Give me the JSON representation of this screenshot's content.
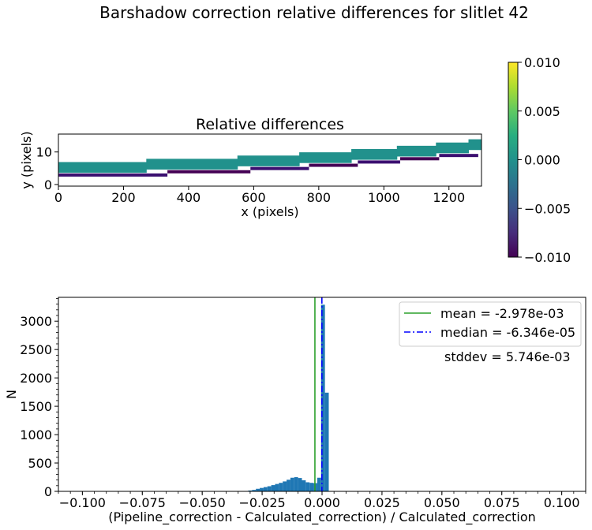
{
  "figure": {
    "title": "Barshadow correction relative differences for slitlet 42"
  },
  "chart_data": [
    {
      "type": "heatmap",
      "title": "Relative differences",
      "xlabel": "x (pixels)",
      "ylabel": "y (pixels)",
      "xlim": [
        0,
        1300
      ],
      "ylim": [
        -0.5,
        15.5
      ],
      "xticks": [
        0,
        200,
        400,
        600,
        800,
        1000,
        1200
      ],
      "yticks": [
        0,
        10
      ],
      "colormap": "viridis",
      "colorbar": {
        "vmin": -0.01,
        "vmax": 0.01,
        "ticks": [
          0.01,
          0.005,
          0.0,
          -0.005,
          -0.01
        ],
        "tick_labels": [
          "0.010",
          "0.005",
          "0.000",
          "−0.005",
          "−0.010"
        ]
      },
      "slit_main_value": 0.0,
      "slit_main_color": "#21918c",
      "steps": [
        {
          "x0": 0,
          "x1": 270,
          "top": 6.9,
          "bottom": 3.6
        },
        {
          "x0": 270,
          "x1": 550,
          "top": 7.9,
          "bottom": 4.6
        },
        {
          "x0": 550,
          "x1": 740,
          "top": 8.9,
          "bottom": 5.6
        },
        {
          "x0": 740,
          "x1": 900,
          "top": 9.9,
          "bottom": 6.6
        },
        {
          "x0": 900,
          "x1": 1040,
          "top": 10.9,
          "bottom": 7.6
        },
        {
          "x0": 1040,
          "x1": 1160,
          "top": 11.9,
          "bottom": 8.6
        },
        {
          "x0": 1160,
          "x1": 1260,
          "top": 12.9,
          "bottom": 9.6
        },
        {
          "x0": 1260,
          "x1": 1300,
          "top": 13.9,
          "bottom": 10.6
        }
      ],
      "edge_segments": [
        {
          "x0": 0,
          "x1": 335,
          "y": 3.4,
          "color": "#3b0f70"
        },
        {
          "x0": 335,
          "x1": 590,
          "y": 4.4,
          "color": "#440154"
        },
        {
          "x0": 590,
          "x1": 770,
          "y": 5.4,
          "color": "#3b0f70"
        },
        {
          "x0": 770,
          "x1": 920,
          "y": 6.4,
          "color": "#440154"
        },
        {
          "x0": 920,
          "x1": 1050,
          "y": 7.4,
          "color": "#3b0f70"
        },
        {
          "x0": 1050,
          "x1": 1170,
          "y": 8.4,
          "color": "#440154"
        },
        {
          "x0": 1170,
          "x1": 1290,
          "y": 9.4,
          "color": "#3b0f70"
        }
      ]
    },
    {
      "type": "bar",
      "subtype": "histogram",
      "xlabel": "(Pipeline_correction - Calculated_correction) / Calculated_correction",
      "ylabel": "N",
      "xlim": [
        -0.11,
        0.11
      ],
      "ylim": [
        0,
        3420
      ],
      "xticks": [
        -0.1,
        -0.075,
        -0.05,
        -0.025,
        0.0,
        0.025,
        0.05,
        0.075,
        0.1
      ],
      "xtick_labels": [
        "−0.100",
        "−0.075",
        "−0.050",
        "−0.025",
        "0.000",
        "0.025",
        "0.050",
        "0.075",
        "0.100"
      ],
      "yticks": [
        0,
        500,
        1000,
        1500,
        2000,
        2500,
        3000
      ],
      "bin_width": 0.0016,
      "bar_color": "#1f77b4",
      "bins": [
        {
          "x": -0.0308,
          "count": 15
        },
        {
          "x": -0.0292,
          "count": 25
        },
        {
          "x": -0.0276,
          "count": 45
        },
        {
          "x": -0.026,
          "count": 60
        },
        {
          "x": -0.0244,
          "count": 75
        },
        {
          "x": -0.0228,
          "count": 90
        },
        {
          "x": -0.0212,
          "count": 110
        },
        {
          "x": -0.0196,
          "count": 130
        },
        {
          "x": -0.018,
          "count": 150
        },
        {
          "x": -0.0164,
          "count": 175
        },
        {
          "x": -0.0148,
          "count": 205
        },
        {
          "x": -0.0132,
          "count": 240
        },
        {
          "x": -0.0116,
          "count": 250
        },
        {
          "x": -0.01,
          "count": 235
        },
        {
          "x": -0.0084,
          "count": 195
        },
        {
          "x": -0.0068,
          "count": 160
        },
        {
          "x": -0.0052,
          "count": 150
        },
        {
          "x": -0.0036,
          "count": 145
        },
        {
          "x": -0.002,
          "count": 240
        },
        {
          "x": -0.0004,
          "count": 3290
        },
        {
          "x": 0.0012,
          "count": 1740
        }
      ],
      "lines": {
        "mean": {
          "value": -0.002978,
          "label": "mean = -2.978e-03",
          "color": "#2ca02c",
          "style": "solid"
        },
        "median": {
          "value": -6.346e-05,
          "label": "median = -6.346e-05",
          "color": "#0000ff",
          "style": "dashdot"
        }
      },
      "stddev_text": "stddev = 5.746e-03",
      "legend_placement": "top-right"
    }
  ]
}
